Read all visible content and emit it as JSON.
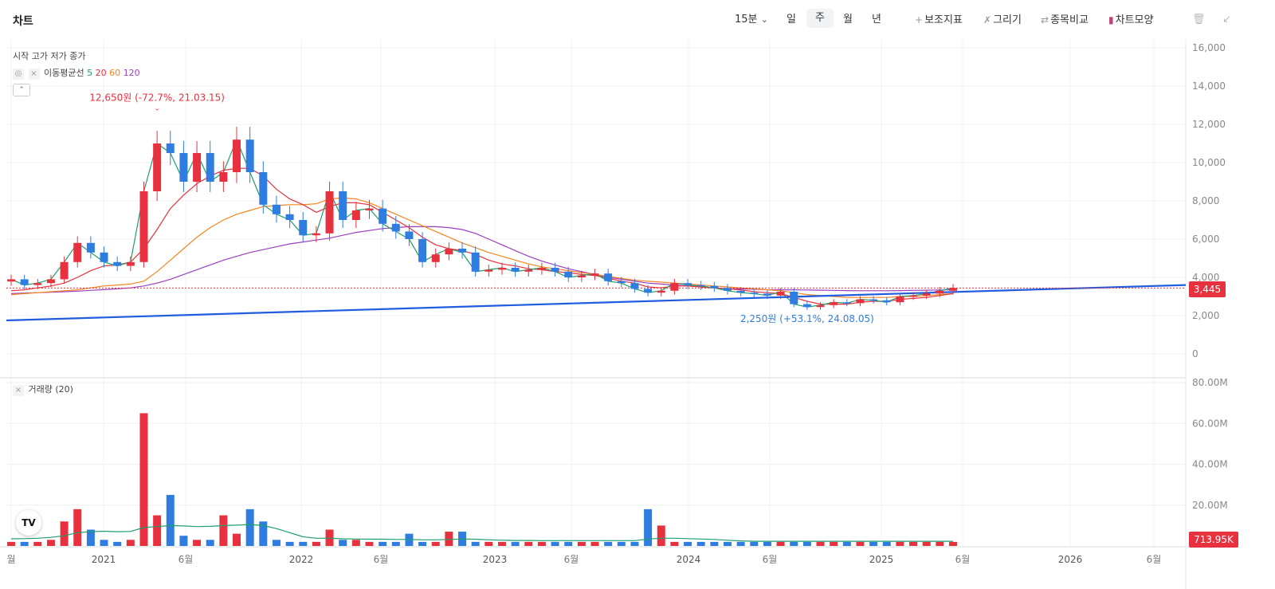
{
  "header": {
    "title": "차트",
    "interval": "15분",
    "period_tabs": [
      "일",
      "주",
      "월",
      "년"
    ],
    "selected_period": "주",
    "tools": {
      "indicator": "보조지표",
      "draw": "그리기",
      "compare": "종목비교",
      "chart_type": "차트모양"
    },
    "icons": {
      "interval": "chevron-down-icon",
      "indicator": "plus-icon",
      "draw": "pencil-icon",
      "compare": "swap-icon",
      "chart_type": "candlestick-icon",
      "delete": "trash-icon",
      "collapse": "shrink-icon"
    }
  },
  "legend": {
    "ohlc_labels": "시작 고가 저가 종가",
    "ma_label": "이동평균선",
    "ma_periods": [
      "5",
      "20",
      "60",
      "120"
    ],
    "ma_colors": [
      "#1e9e6a",
      "#e8313e",
      "#f5841f",
      "#9b3fc0"
    ],
    "volume_label": "거래량 (20)"
  },
  "annotations": {
    "high": "12,650원 (-72.7%, 21.03.15)",
    "low": "2,250원 (+53.1%, 24.08.05)"
  },
  "price_axis": [
    "16,000",
    "14,000",
    "12,000",
    "10,000",
    "8,000",
    "6,000",
    "4,000",
    "2,000",
    "0"
  ],
  "volume_axis": [
    "80.00M",
    "60.00M",
    "40.00M",
    "20.00M"
  ],
  "time_axis": [
    "월",
    "2021",
    "6월",
    "2022",
    "6월",
    "2023",
    "6월",
    "2024",
    "6월",
    "2025",
    "6월",
    "2026",
    "6월"
  ],
  "current_price": "3,445",
  "current_volume": "713.95K",
  "colors": {
    "up": "#e8313e",
    "down": "#2f7de1",
    "trendline": "#1f5ce0"
  },
  "logo_text": "TV",
  "chart_data": {
    "type": "candlestick",
    "ylim": [
      0,
      16000
    ],
    "current_price": 3445,
    "annotations": [
      {
        "label": "12,650원 (-72.7%, 21.03.15)",
        "value": 12650,
        "date": "21.03.15"
      },
      {
        "label": "2,250원 (+53.1%, 24.08.05)",
        "value": 2250,
        "date": "24.08.05"
      }
    ],
    "moving_averages": [
      {
        "name": "5",
        "color": "#1e9e6a"
      },
      {
        "name": "20",
        "color": "#e8313e"
      },
      {
        "name": "60",
        "color": "#f5841f"
      },
      {
        "name": "120",
        "color": "#9b3fc0"
      }
    ],
    "trendline": {
      "start": 1750,
      "end": 3600
    },
    "closes": [
      3900,
      3600,
      3700,
      3900,
      4800,
      5800,
      5300,
      4800,
      4600,
      4800,
      8500,
      11000,
      10500,
      9000,
      10500,
      9000,
      9500,
      11200,
      9500,
      7800,
      7300,
      7000,
      6200,
      6300,
      8500,
      7000,
      7500,
      7600,
      6800,
      6400,
      6000,
      4800,
      5200,
      5500,
      5300,
      4300,
      4400,
      4500,
      4300,
      4400,
      4500,
      4300,
      4000,
      4100,
      4200,
      3800,
      3700,
      3400,
      3200,
      3300,
      3700,
      3600,
      3550,
      3450,
      3300,
      3200,
      3150,
      3050,
      3250,
      2600,
      2450,
      2550,
      2700,
      2650,
      2850,
      2800,
      2700,
      3000,
      3050,
      3150,
      3300,
      3445
    ],
    "ma20": [
      3300,
      3350,
      3450,
      3550,
      3700,
      4000,
      4350,
      4600,
      4650,
      4800,
      5500,
      6500,
      7600,
      8300,
      8900,
      9300,
      9600,
      9700,
      9700,
      9300,
      8600,
      8100,
      7800,
      7400,
      7700,
      7900,
      7900,
      7800,
      7400,
      7000,
      6600,
      6100,
      5700,
      5500,
      5400,
      5200,
      4900,
      4700,
      4600,
      4450,
      4400,
      4300,
      4250,
      4150,
      4100,
      3950,
      3800,
      3700,
      3500,
      3450,
      3550,
      3550,
      3500,
      3450,
      3400,
      3350,
      3250,
      3200,
      3150,
      2950,
      2750,
      2600,
      2600,
      2600,
      2700,
      2750,
      2750,
      2850,
      2900,
      2950,
      3050,
      3150
    ],
    "ma60": [
      3100,
      3150,
      3200,
      3250,
      3300,
      3350,
      3450,
      3550,
      3600,
      3650,
      3800,
      4300,
      4900,
      5500,
      6100,
      6600,
      7000,
      7300,
      7500,
      7700,
      7750,
      7800,
      7800,
      7850,
      8100,
      8150,
      8100,
      7900,
      7600,
      7300,
      7000,
      6700,
      6400,
      6100,
      5800,
      5550,
      5300,
      5100,
      4900,
      4700,
      4550,
      4450,
      4350,
      4250,
      4150,
      4050,
      3950,
      3850,
      3800,
      3750,
      3700,
      3650,
      3600,
      3550,
      3500,
      3450,
      3400,
      3350,
      3300,
      3200,
      3100,
      3050,
      3000,
      2950,
      2950,
      2950,
      2950,
      3000,
      3000,
      3050,
      3100,
      3150
    ],
    "ma120": [
      3150,
      3180,
      3200,
      3220,
      3250,
      3280,
      3320,
      3360,
      3400,
      3450,
      3550,
      3700,
      3900,
      4150,
      4400,
      4650,
      4900,
      5100,
      5300,
      5450,
      5600,
      5750,
      5850,
      5950,
      6050,
      6200,
      6350,
      6450,
      6550,
      6600,
      6650,
      6650,
      6650,
      6600,
      6500,
      6300,
      6000,
      5700,
      5400,
      5100,
      4850,
      4650,
      4450,
      4300,
      4150,
      4000,
      3900,
      3800,
      3700,
      3650,
      3600,
      3550,
      3500,
      3450,
      3400,
      3400,
      3380,
      3350,
      3350,
      3350,
      3340,
      3330,
      3320,
      3310,
      3300,
      3300,
      3300,
      3310,
      3320,
      3330,
      3340,
      3350
    ],
    "volume": [
      2,
      2,
      2,
      3,
      12,
      18,
      8,
      3,
      2,
      3,
      65,
      15,
      25,
      5,
      3,
      3,
      15,
      6,
      18,
      12,
      3,
      2,
      2,
      2,
      8,
      3,
      3,
      2,
      2,
      2,
      6,
      2,
      2,
      7,
      7,
      2,
      2,
      2,
      2,
      2,
      2,
      2,
      2,
      2,
      2,
      2,
      2,
      2,
      18,
      10,
      2,
      2,
      2,
      2,
      2,
      2,
      2,
      2,
      2,
      2,
      2,
      2,
      2,
      2,
      2,
      2,
      2,
      2,
      2,
      2,
      2,
      2
    ],
    "volume_ma": [
      3.5,
      3.6,
      3.8,
      4.2,
      5.0,
      6.5,
      7.0,
      7.2,
      7.0,
      7.1,
      9.0,
      9.5,
      10.0,
      9.8,
      9.5,
      9.6,
      10.0,
      10.2,
      10.5,
      10.0,
      8.5,
      6.5,
      4.5,
      3.8,
      3.8,
      3.5,
      3.4,
      3.3,
      3.3,
      3.2,
      3.2,
      3.0,
      3.0,
      3.2,
      3.4,
      3.3,
      3.0,
      2.8,
      2.7,
      2.7,
      2.6,
      2.6,
      2.6,
      2.6,
      2.6,
      2.6,
      2.6,
      2.6,
      3.4,
      3.8,
      3.8,
      3.6,
      3.4,
      3.2,
      2.8,
      2.5,
      2.3,
      2.3,
      2.3,
      2.3,
      2.3,
      2.3,
      2.3,
      2.3,
      2.3,
      2.3,
      2.3,
      2.3,
      2.3,
      2.3,
      2.3,
      2.3
    ],
    "volume_ylim": [
      0,
      80
    ]
  }
}
